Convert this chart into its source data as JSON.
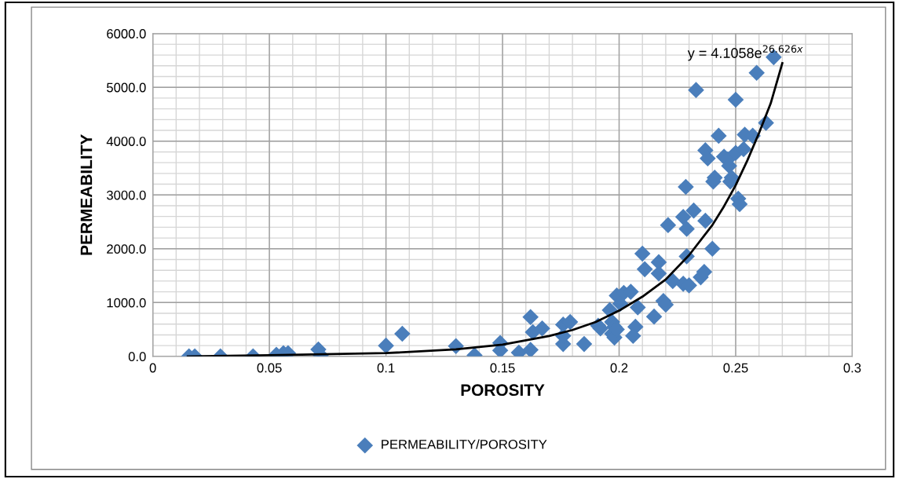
{
  "chart_data": {
    "type": "scatter",
    "xlabel": "POROSITY",
    "ylabel": "PERMEABILITY",
    "annotations": [
      "y = 4.1058e$^{26.626x}$"
    ],
    "xlim": [
      0,
      0.3
    ],
    "xticks": [
      0,
      0.05,
      0.1,
      0.15,
      0.2,
      0.25,
      0.3
    ],
    "ylim": [
      0,
      6000
    ],
    "yticks": [
      {
        "value": 0,
        "label": "0.0"
      },
      {
        "value": 1000,
        "label": "1000.0"
      },
      {
        "value": 2000,
        "label": "2000.0"
      },
      {
        "value": 3000,
        "label": "3000.0"
      },
      {
        "value": 4000,
        "label": "4000.0"
      },
      {
        "value": 5000,
        "label": "5000.0"
      },
      {
        "value": 6000,
        "label": "6000.0"
      }
    ],
    "grid": true,
    "legend": "bottom",
    "marker": "diamond",
    "series": [
      {
        "name": "PERMEABILITY/POROSITY",
        "color": "#4a7ebb",
        "x": [
          0.0155,
          0.018,
          0.029,
          0.043,
          0.053,
          0.056,
          0.058,
          0.071,
          0.072,
          0.1,
          0.107,
          0.13,
          0.138,
          0.149,
          0.149,
          0.157,
          0.162,
          0.162,
          0.163,
          0.167,
          0.176,
          0.176,
          0.176,
          0.179,
          0.185,
          0.192,
          0.191,
          0.196,
          0.197,
          0.197,
          0.198,
          0.198,
          0.199,
          0.199,
          0.202,
          0.2005,
          0.205,
          0.208,
          0.207,
          0.206,
          0.21,
          0.211,
          0.215,
          0.217,
          0.217,
          0.219,
          0.22,
          0.221,
          0.223,
          0.2275,
          0.2275,
          0.229,
          0.23,
          0.229,
          0.2286,
          0.232,
          0.235,
          0.2365,
          0.237,
          0.233,
          0.237,
          0.238,
          0.24,
          0.2404,
          0.241,
          0.2427,
          0.245,
          0.2466,
          0.2472,
          0.2483,
          0.2477,
          0.25,
          0.2534,
          0.2539,
          0.2511,
          0.2517,
          0.25,
          0.2573,
          0.259,
          0.263,
          0.2663
        ],
        "values": [
          0,
          0,
          0,
          0,
          30,
          60,
          60,
          130,
          20,
          200,
          420,
          190,
          20,
          250,
          110,
          70,
          120,
          730,
          450,
          520,
          230,
          380,
          590,
          640,
          230,
          520,
          570,
          860,
          640,
          420,
          350,
          550,
          500,
          1130,
          1180,
          980,
          1200,
          910,
          550,
          380,
          1910,
          1620,
          740,
          1750,
          1540,
          1030,
          960,
          2440,
          1400,
          1350,
          2590,
          1860,
          1320,
          2370,
          3150,
          2710,
          1470,
          1570,
          2520,
          4950,
          3830,
          3680,
          2000,
          3250,
          3320,
          4100,
          3710,
          3660,
          3540,
          3320,
          3250,
          3780,
          3850,
          4120,
          2930,
          2830,
          4770,
          4100,
          5270,
          4340,
          5560
        ]
      },
      {
        "color": "#000000",
        "type": "line",
        "marker": "none",
        "x": [
          0.015,
          0.05,
          0.1,
          0.13,
          0.15,
          0.17,
          0.18,
          0.19,
          0.2,
          0.21,
          0.22,
          0.23,
          0.24,
          0.245,
          0.25,
          0.255,
          0.26,
          0.265,
          0.27
        ],
        "values": [
          0,
          20,
          60,
          130,
          220,
          380,
          490,
          640,
          850,
          1110,
          1430,
          1880,
          2440,
          2790,
          3180,
          3640,
          4150,
          4700,
          5450
        ]
      }
    ]
  }
}
